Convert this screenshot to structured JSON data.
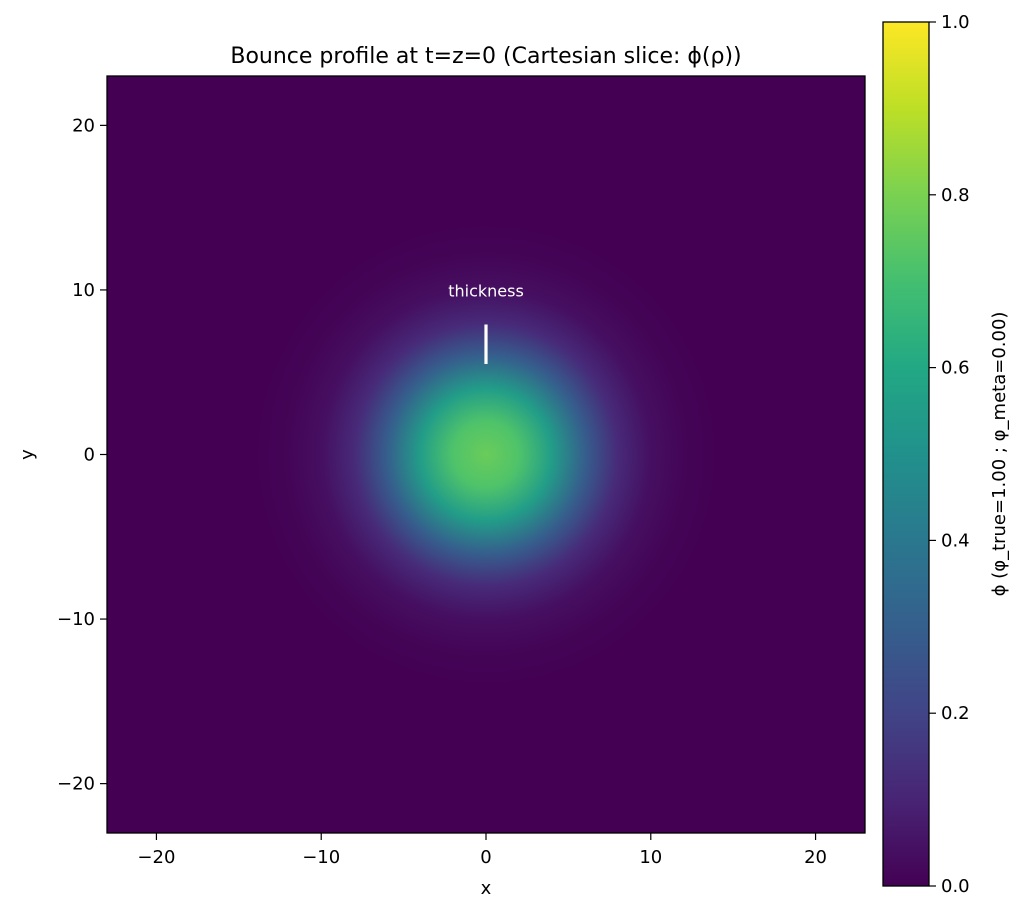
{
  "chart_data": {
    "type": "heatmap",
    "title": "Bounce profile at t=z=0 (Cartesian slice: ϕ(ρ))",
    "xlabel": "x",
    "ylabel": "y",
    "xlim": [
      -23,
      23
    ],
    "ylim": [
      -23,
      23
    ],
    "xticks": [
      -20,
      -10,
      0,
      10,
      20
    ],
    "yticks": [
      -20,
      -10,
      0,
      10,
      20
    ],
    "xtick_labels": [
      "−20",
      "−10",
      "0",
      "10",
      "20"
    ],
    "ytick_labels": [
      "−20",
      "−10",
      "0",
      "10",
      "20"
    ],
    "colormap": "viridis",
    "profile": {
      "center": [
        0,
        0
      ],
      "peak_value": 0.77,
      "half_value_radius": 4.5,
      "radial_samples": [
        {
          "rho": 0,
          "phi": 0.77
        },
        {
          "rho": 2,
          "phi": 0.72
        },
        {
          "rho": 4,
          "phi": 0.55
        },
        {
          "rho": 6,
          "phi": 0.3
        },
        {
          "rho": 8,
          "phi": 0.12
        },
        {
          "rho": 10,
          "phi": 0.04
        },
        {
          "rho": 12,
          "phi": 0.01
        },
        {
          "rho": 14,
          "phi": 0.0
        }
      ]
    },
    "annotation": {
      "text": "thickness",
      "text_position": [
        0,
        9.6
      ],
      "marker_line": {
        "x": 0,
        "y_from": 5.5,
        "y_to": 7.9
      }
    },
    "colorbar": {
      "label": "ϕ  (φ_true=1.00 ;  φ_meta=0.00)",
      "range": [
        0.0,
        1.0
      ],
      "ticks": [
        0.0,
        0.2,
        0.4,
        0.6,
        0.8,
        1.0
      ],
      "tick_labels": [
        "0.0",
        "0.2",
        "0.4",
        "0.6",
        "0.8",
        "1.0"
      ]
    }
  }
}
